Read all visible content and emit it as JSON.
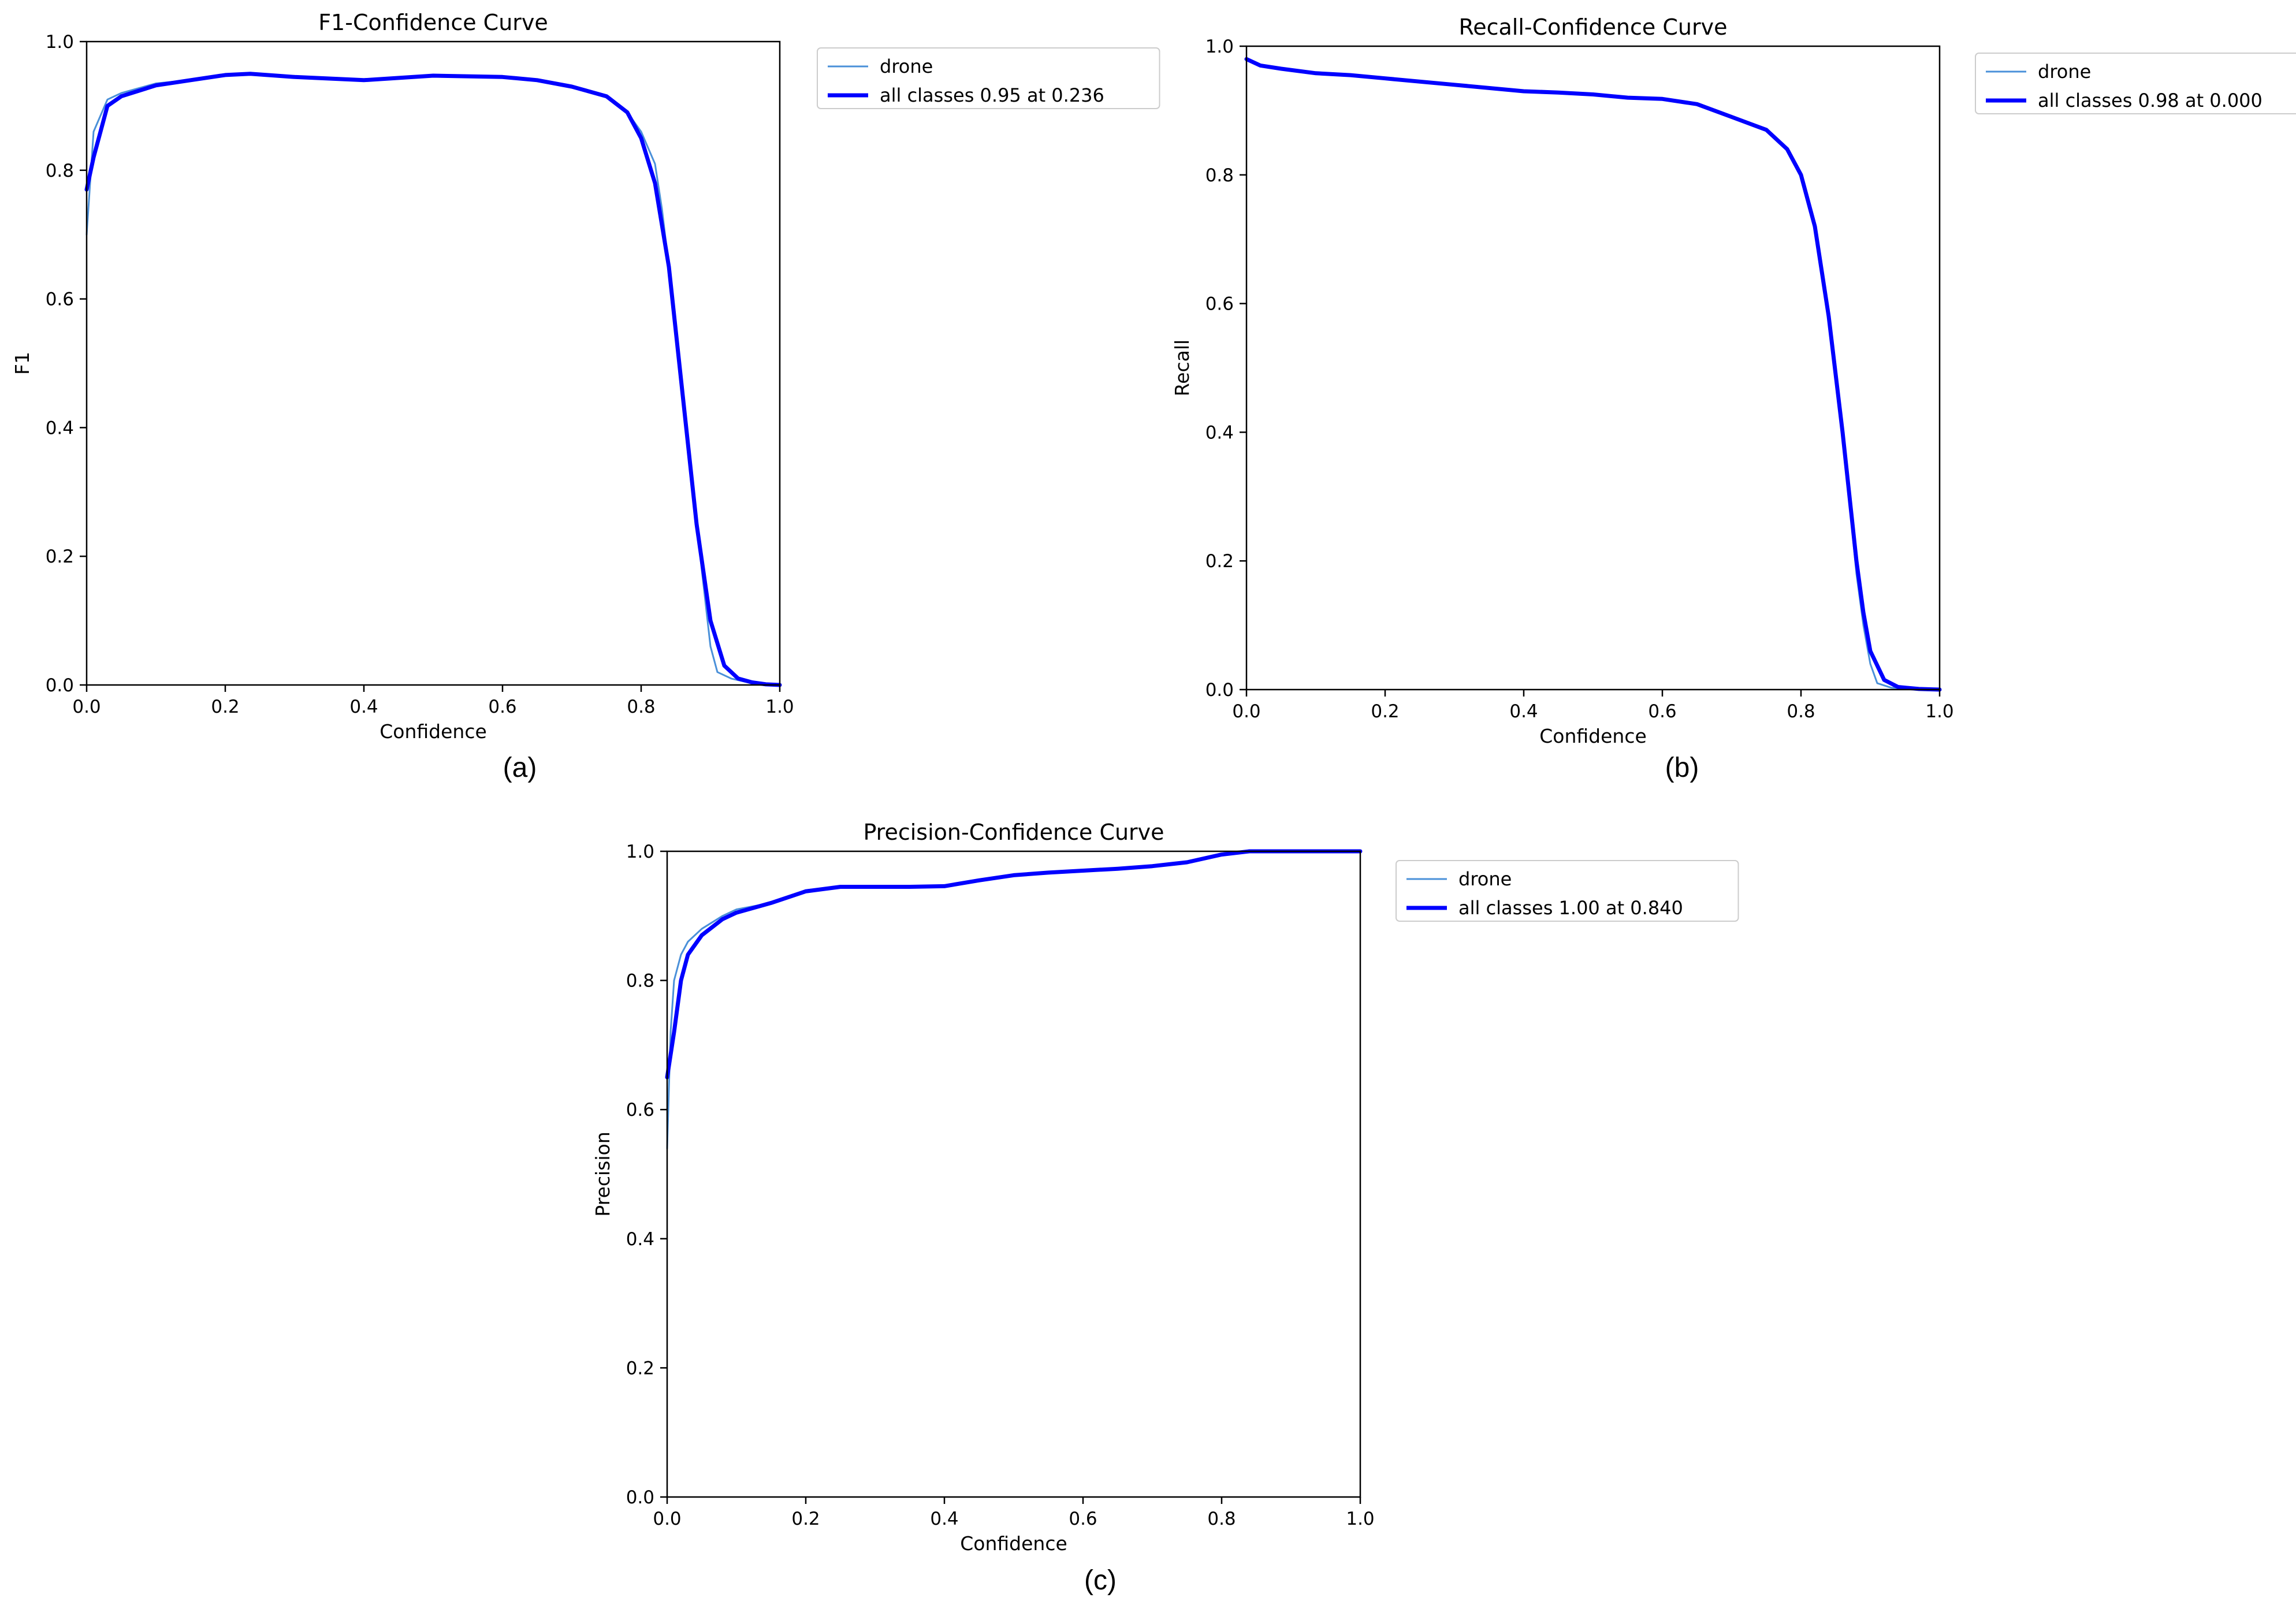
{
  "colors": {
    "drone": "#4a90d9",
    "all_classes": "#0000ff"
  },
  "chart_data": [
    {
      "type": "line",
      "panel": "a",
      "caption": "(a)",
      "title": "F1-Confidence Curve",
      "xlabel": "Confidence",
      "ylabel": "F1",
      "xlim": [
        0,
        1
      ],
      "ylim": [
        0,
        1
      ],
      "xticks": [
        "0.0",
        "0.2",
        "0.4",
        "0.6",
        "0.8",
        "1.0"
      ],
      "yticks": [
        "0.0",
        "0.2",
        "0.4",
        "0.6",
        "0.8",
        "1.0"
      ],
      "legend": {
        "placement": "outside-right-top",
        "entries": [
          "drone",
          "all classes 0.95 at 0.236"
        ]
      },
      "series": [
        {
          "name": "drone",
          "style": "thin",
          "x": [
            0,
            0.01,
            0.03,
            0.05,
            0.1,
            0.15,
            0.2,
            0.236,
            0.3,
            0.4,
            0.5,
            0.6,
            0.65,
            0.7,
            0.75,
            0.78,
            0.8,
            0.82,
            0.83,
            0.84,
            0.86,
            0.88,
            0.9,
            0.91,
            0.93,
            0.95,
            0.98,
            1.0
          ],
          "y": [
            0.7,
            0.86,
            0.91,
            0.92,
            0.935,
            0.94,
            0.948,
            0.95,
            0.945,
            0.94,
            0.947,
            0.945,
            0.94,
            0.93,
            0.915,
            0.89,
            0.86,
            0.81,
            0.74,
            0.65,
            0.45,
            0.25,
            0.06,
            0.02,
            0.01,
            0.005,
            0.0,
            0.0
          ]
        },
        {
          "name": "all classes 0.95 at 0.236",
          "style": "thick",
          "x": [
            0,
            0.01,
            0.02,
            0.03,
            0.05,
            0.1,
            0.15,
            0.2,
            0.236,
            0.3,
            0.4,
            0.5,
            0.6,
            0.65,
            0.7,
            0.75,
            0.78,
            0.8,
            0.82,
            0.84,
            0.86,
            0.88,
            0.9,
            0.92,
            0.94,
            0.96,
            0.98,
            1.0
          ],
          "y": [
            0.77,
            0.82,
            0.86,
            0.9,
            0.915,
            0.932,
            0.94,
            0.948,
            0.95,
            0.945,
            0.94,
            0.947,
            0.945,
            0.94,
            0.93,
            0.915,
            0.89,
            0.85,
            0.78,
            0.65,
            0.45,
            0.25,
            0.1,
            0.03,
            0.01,
            0.004,
            0.001,
            0.0
          ]
        }
      ]
    },
    {
      "type": "line",
      "panel": "b",
      "caption": "(b)",
      "title": "Recall-Confidence Curve",
      "xlabel": "Confidence",
      "ylabel": "Recall",
      "xlim": [
        0,
        1
      ],
      "ylim": [
        0,
        1
      ],
      "xticks": [
        "0.0",
        "0.2",
        "0.4",
        "0.6",
        "0.8",
        "1.0"
      ],
      "yticks": [
        "0.0",
        "0.2",
        "0.4",
        "0.6",
        "0.8",
        "1.0"
      ],
      "legend": {
        "placement": "outside-right-top",
        "entries": [
          "drone",
          "all classes 0.98 at 0.000"
        ]
      },
      "series": [
        {
          "name": "drone",
          "style": "thin",
          "x": [
            0,
            0.02,
            0.05,
            0.1,
            0.15,
            0.2,
            0.3,
            0.4,
            0.45,
            0.5,
            0.55,
            0.6,
            0.65,
            0.7,
            0.75,
            0.78,
            0.8,
            0.82,
            0.84,
            0.86,
            0.88,
            0.89,
            0.9,
            0.91,
            0.93,
            0.96,
            1.0
          ],
          "y": [
            0.98,
            0.97,
            0.965,
            0.958,
            0.955,
            0.95,
            0.94,
            0.93,
            0.928,
            0.925,
            0.92,
            0.918,
            0.91,
            0.89,
            0.87,
            0.84,
            0.8,
            0.72,
            0.58,
            0.4,
            0.18,
            0.1,
            0.04,
            0.01,
            0.003,
            0.001,
            0.0
          ]
        },
        {
          "name": "all classes 0.98 at 0.000",
          "style": "thick",
          "x": [
            0,
            0.02,
            0.05,
            0.1,
            0.15,
            0.2,
            0.3,
            0.4,
            0.45,
            0.5,
            0.55,
            0.6,
            0.65,
            0.7,
            0.75,
            0.78,
            0.8,
            0.82,
            0.84,
            0.86,
            0.88,
            0.89,
            0.9,
            0.92,
            0.94,
            0.97,
            1.0
          ],
          "y": [
            0.98,
            0.97,
            0.965,
            0.958,
            0.955,
            0.95,
            0.94,
            0.93,
            0.928,
            0.925,
            0.92,
            0.918,
            0.91,
            0.89,
            0.87,
            0.84,
            0.8,
            0.72,
            0.58,
            0.4,
            0.2,
            0.12,
            0.06,
            0.015,
            0.004,
            0.001,
            0.0
          ]
        }
      ]
    },
    {
      "type": "line",
      "panel": "c",
      "caption": "(c)",
      "title": "Precision-Confidence Curve",
      "xlabel": "Confidence",
      "ylabel": "Precision",
      "xlim": [
        0,
        1
      ],
      "ylim": [
        0,
        1
      ],
      "xticks": [
        "0.0",
        "0.2",
        "0.4",
        "0.6",
        "0.8",
        "1.0"
      ],
      "yticks": [
        "0.0",
        "0.2",
        "0.4",
        "0.6",
        "0.8",
        "1.0"
      ],
      "legend": {
        "placement": "outside-right-top",
        "entries": [
          "drone",
          "all classes 1.00 at 0.840"
        ]
      },
      "series": [
        {
          "name": "drone",
          "style": "thin",
          "x": [
            0,
            0.005,
            0.01,
            0.02,
            0.03,
            0.05,
            0.08,
            0.1,
            0.15,
            0.2,
            0.25,
            0.3,
            0.35,
            0.4,
            0.45,
            0.5,
            0.55,
            0.6,
            0.65,
            0.7,
            0.75,
            0.8,
            0.84,
            0.9,
            1.0
          ],
          "y": [
            0.54,
            0.72,
            0.8,
            0.84,
            0.86,
            0.88,
            0.9,
            0.91,
            0.92,
            0.94,
            0.945,
            0.945,
            0.945,
            0.946,
            0.955,
            0.963,
            0.967,
            0.97,
            0.973,
            0.977,
            0.983,
            0.995,
            1.0,
            1.0,
            1.0
          ]
        },
        {
          "name": "all classes 1.00 at 0.840",
          "style": "thick",
          "x": [
            0,
            0.01,
            0.02,
            0.03,
            0.05,
            0.08,
            0.1,
            0.15,
            0.2,
            0.25,
            0.3,
            0.35,
            0.4,
            0.45,
            0.5,
            0.55,
            0.6,
            0.65,
            0.7,
            0.75,
            0.8,
            0.84,
            0.9,
            1.0
          ],
          "y": [
            0.65,
            0.72,
            0.8,
            0.84,
            0.87,
            0.895,
            0.905,
            0.92,
            0.938,
            0.945,
            0.945,
            0.945,
            0.946,
            0.955,
            0.963,
            0.967,
            0.97,
            0.973,
            0.977,
            0.983,
            0.995,
            1.0,
            1.0,
            1.0
          ]
        }
      ]
    }
  ]
}
